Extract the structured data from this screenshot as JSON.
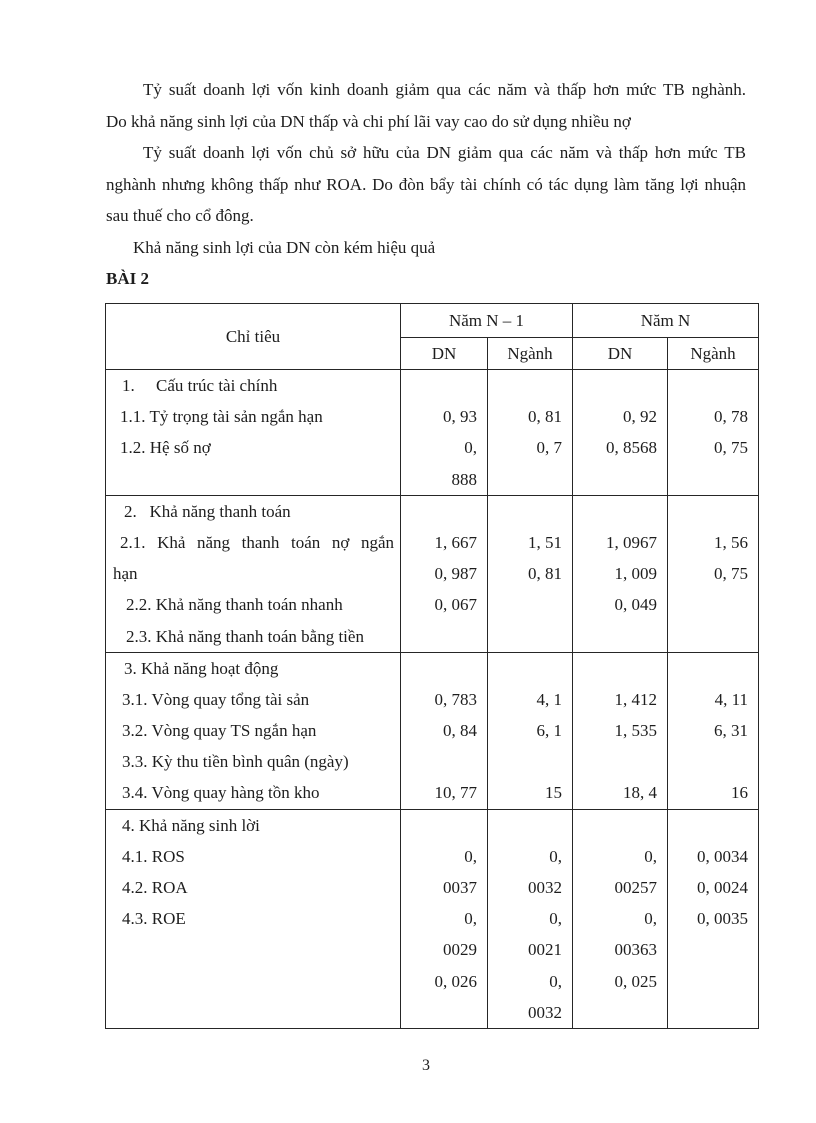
{
  "colors": {
    "ink": "#1d1d1d",
    "background": "#ffffff",
    "table_border": "#262626"
  },
  "paragraphs": [
    {
      "indent": 37,
      "lines": [
        {
          "text": "Tỷ suất doanh lợi vốn kinh doanh giảm qua các năm và thấp hơn mức TB nghành.",
          "justify": true
        },
        {
          "text": "Do khả năng sinh lợi của DN thấp và chi phí lãi vay cao do sử dụng nhiều nợ",
          "justify": false
        }
      ]
    },
    {
      "indent": 37,
      "lines": [
        {
          "text": "Tỷ suất doanh lợi vốn chủ sở hữu của DN giảm qua các năm và thấp hơn mức TB",
          "justify": true
        },
        {
          "text": "nghành nhưng không thấp như ROA. Do đòn bẩy tài chính có tác dụng làm tăng lợi nhuận",
          "justify": true
        },
        {
          "text": "sau thuế cho cổ đông.",
          "justify": false
        }
      ]
    },
    {
      "indent": 27,
      "lines": [
        {
          "text": "Khả năng sinh lợi của DN còn kém hiệu quả",
          "justify": false
        }
      ]
    }
  ],
  "heading": "BÀI 2",
  "table": {
    "header": {
      "criteria": "Chỉ tiêu",
      "year_prev": "Năm N – 1",
      "year_curr": "Năm N",
      "sub": [
        "DN",
        "Ngành",
        "DN",
        "Ngành"
      ]
    },
    "sections": [
      {
        "rows": [
          {
            "label": "1.     Cấu trúc tài chính",
            "pad": 16,
            "v": [
              "",
              "",
              "",
              ""
            ]
          },
          {
            "label": "1.1. Tỷ trọng tài sản ngắn hạn",
            "pad": 14,
            "v": [
              "0, 93",
              "0, 81",
              "0, 92",
              "0, 78"
            ]
          },
          {
            "label": "1.2. Hệ số nợ",
            "pad": 14,
            "v": [
              "0,",
              "0, 7",
              "0, 8568",
              "0, 75"
            ]
          },
          {
            "label": "",
            "pad": 0,
            "v": [
              "888",
              "",
              "",
              ""
            ]
          }
        ]
      },
      {
        "rows": [
          {
            "label": "2.   Khả năng thanh toán",
            "pad": 18,
            "v": [
              "",
              "",
              "",
              ""
            ]
          },
          {
            "label": "2.1. Khả năng thanh toán nợ ngắn",
            "pad": 14,
            "just": true,
            "v": [
              "1, 667",
              "1, 51",
              "1, 0967",
              "1, 56"
            ]
          },
          {
            "label": "hạn",
            "pad": 7,
            "v": [
              "0, 987",
              "0, 81",
              "1, 009",
              "0, 75"
            ]
          },
          {
            "label": "2.2. Khả năng thanh toán nhanh",
            "pad": 20,
            "v": [
              "0, 067",
              "",
              "0, 049",
              ""
            ]
          },
          {
            "label": "2.3. Khả năng thanh toán bằng tiền",
            "pad": 20,
            "v": [
              "",
              "",
              "",
              ""
            ]
          }
        ]
      },
      {
        "rows": [
          {
            "label": "3. Khả năng hoạt động",
            "pad": 18,
            "v": [
              "",
              "",
              "",
              ""
            ]
          },
          {
            "label": "3.1. Vòng quay tổng tài sản",
            "pad": 16,
            "v": [
              "0, 783",
              "4, 1",
              "1, 412",
              "4, 11"
            ]
          },
          {
            "label": "3.2. Vòng quay TS ngắn hạn",
            "pad": 16,
            "v": [
              "0, 84",
              "6, 1",
              "1, 535",
              "6, 31"
            ]
          },
          {
            "label": "3.3. Kỳ thu tiền bình quân (ngày)",
            "pad": 16,
            "v": [
              "",
              "",
              "",
              ""
            ]
          },
          {
            "label": "3.4. Vòng quay hàng tồn kho",
            "pad": 16,
            "v": [
              "10, 77",
              "15",
              "18, 4",
              "16"
            ]
          }
        ]
      },
      {
        "rows": [
          {
            "label": "4. Khả năng sinh lời",
            "pad": 16,
            "v": [
              "",
              "",
              "",
              ""
            ]
          },
          {
            "label": "4.1. ROS",
            "pad": 16,
            "v": [
              "0,",
              "0,",
              "0,",
              "0, 0034"
            ]
          },
          {
            "label": "4.2. ROA",
            "pad": 16,
            "v": [
              "0037",
              "0032",
              "00257",
              "0, 0024"
            ]
          },
          {
            "label": "4.3. ROE",
            "pad": 16,
            "v": [
              "0,",
              "0,",
              "0,",
              "0, 0035"
            ]
          },
          {
            "label": "",
            "pad": 0,
            "v": [
              "0029",
              "0021",
              "00363",
              ""
            ]
          },
          {
            "label": "",
            "pad": 0,
            "v": [
              "0, 026",
              "0,",
              "0, 025",
              ""
            ]
          },
          {
            "label": "",
            "pad": 0,
            "v": [
              "",
              "0032",
              "",
              ""
            ]
          }
        ]
      }
    ]
  },
  "page": {
    "number": "3"
  }
}
